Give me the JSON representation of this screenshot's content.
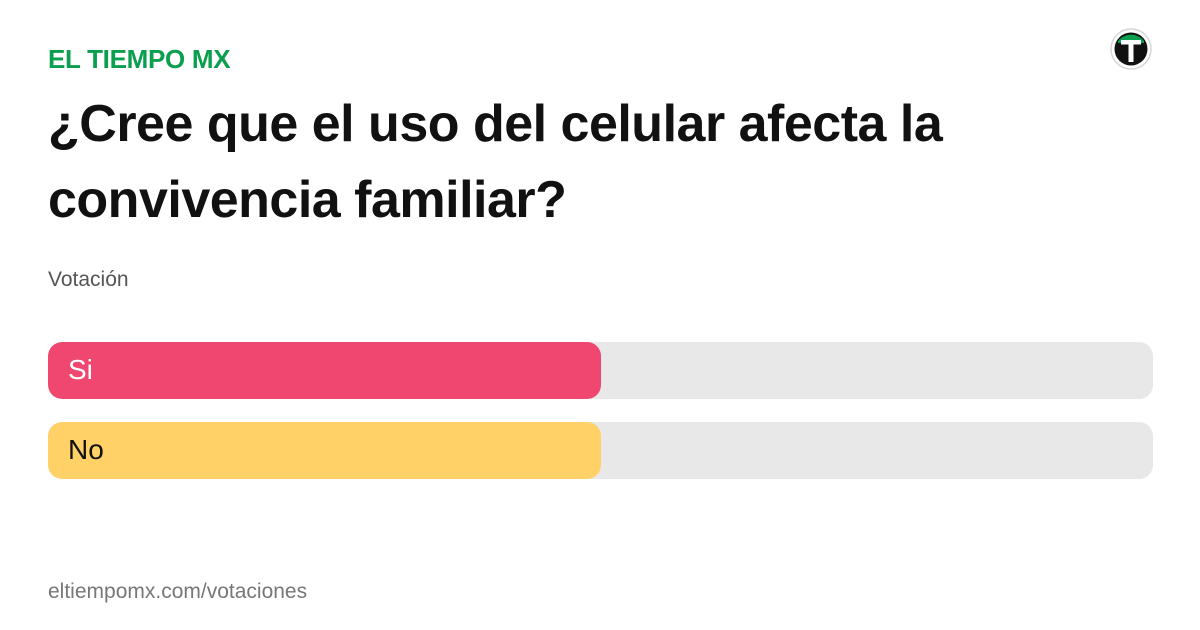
{
  "brand": {
    "name": "EL TIEMPO MX",
    "logo_letter": "T",
    "color": "#0a9f4f"
  },
  "poll": {
    "question": "¿Cree que el uso del celular afecta la convivencia familiar?",
    "type_label": "Votación",
    "options": [
      {
        "label": "Si",
        "share": 0.5,
        "color": "#ef476f",
        "text_color": "#ffffff"
      },
      {
        "label": "No",
        "share": 0.5,
        "color": "#ffd166",
        "text_color": "#111111"
      }
    ]
  },
  "footer": {
    "url": "eltiempomx.com/votaciones"
  }
}
